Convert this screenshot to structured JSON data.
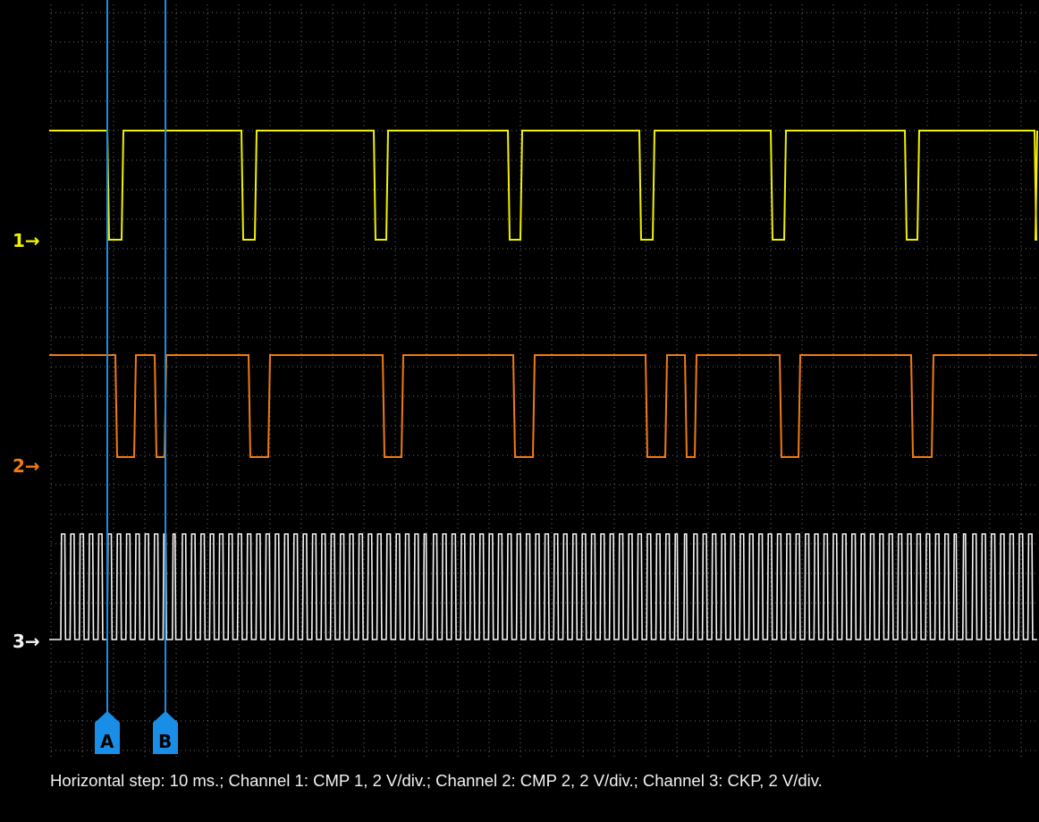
{
  "caption": "Horizontal step: 10 ms.; Channel 1: CMP 1, 2 V/div.; Channel 2: CMP 2, 2 V/div.; Channel 3: CKP, 2 V/div.",
  "channels": [
    {
      "id": "1",
      "marker": "1→",
      "color": "#f0f000"
    },
    {
      "id": "2",
      "marker": "2→",
      "color": "#f07a10"
    },
    {
      "id": "3",
      "marker": "3→",
      "color": "#f4f4f4"
    }
  ],
  "cursors": [
    {
      "label": "A",
      "color": "#1a8ee6"
    },
    {
      "label": "B",
      "color": "#1a8ee6"
    }
  ],
  "colors": {
    "background": "#000000",
    "grid": "#6a6a6a",
    "cursor": "#1a8ee6"
  }
}
